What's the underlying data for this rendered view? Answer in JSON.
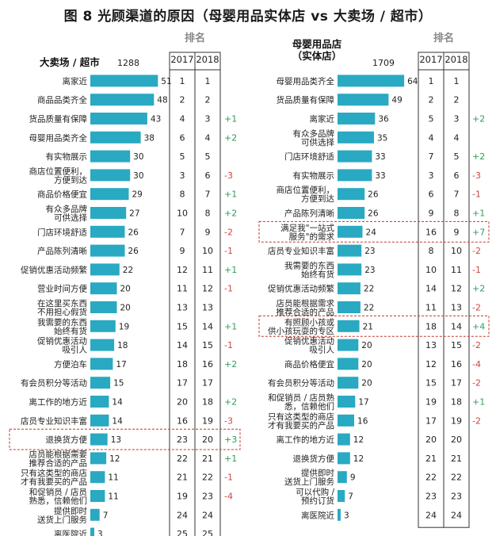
{
  "title": "图 8  光顾渠道的原因（母婴用品实体店 vs 大卖场 / 超市）",
  "rank_header": "排名",
  "years": [
    "2017",
    "2018"
  ],
  "colors": {
    "bar": "#29a9c2",
    "pos": "#2e9e5a",
    "neg": "#d0453f",
    "highlight": "#c0392b",
    "grid": "#333333"
  },
  "chart_data": [
    {
      "type": "bar",
      "orientation": "horizontal",
      "panel_title": "大卖场 / 超市",
      "sample_size": "1288",
      "xlim": [
        0,
        55
      ],
      "rows": [
        {
          "label": "离家近",
          "value": 51,
          "r2017": "1",
          "r2018": "1",
          "change": ""
        },
        {
          "label": "商品品类齐全",
          "value": 48,
          "r2017": "2",
          "r2018": "2",
          "change": ""
        },
        {
          "label": "货品质量有保障",
          "value": 43,
          "r2017": "4",
          "r2018": "3",
          "change": "+1"
        },
        {
          "label": "母婴用品类齐全",
          "value": 38,
          "r2017": "6",
          "r2018": "4",
          "change": "+2"
        },
        {
          "label": "有实物展示",
          "value": 30,
          "r2017": "5",
          "r2018": "5",
          "change": ""
        },
        {
          "label": "商店位置便利，\n方便到达",
          "value": 30,
          "r2017": "3",
          "r2018": "6",
          "change": "-3"
        },
        {
          "label": "商品价格便宜",
          "value": 29,
          "r2017": "8",
          "r2018": "7",
          "change": "+1"
        },
        {
          "label": "有众多品牌\n可供选择",
          "value": 27,
          "r2017": "10",
          "r2018": "8",
          "change": "+2"
        },
        {
          "label": "门店环境舒适",
          "value": 26,
          "r2017": "7",
          "r2018": "9",
          "change": "-2"
        },
        {
          "label": "产品陈列清晰",
          "value": 26,
          "r2017": "9",
          "r2018": "10",
          "change": "-1"
        },
        {
          "label": "促销优惠活动频繁",
          "value": 22,
          "r2017": "12",
          "r2018": "11",
          "change": "+1"
        },
        {
          "label": "营业时间方便",
          "value": 20,
          "r2017": "11",
          "r2018": "12",
          "change": "-1"
        },
        {
          "label": "在这里买东西\n不用担心假货",
          "value": 20,
          "r2017": "13",
          "r2018": "13",
          "change": ""
        },
        {
          "label": "我需要的东西\n始终有货",
          "value": 19,
          "r2017": "15",
          "r2018": "14",
          "change": "+1"
        },
        {
          "label": "促销优惠活动\n吸引人",
          "value": 18,
          "r2017": "14",
          "r2018": "15",
          "change": "-1"
        },
        {
          "label": "方便泊车",
          "value": 17,
          "r2017": "18",
          "r2018": "16",
          "change": "+2"
        },
        {
          "label": "有会员积分等活动",
          "value": 15,
          "r2017": "17",
          "r2018": "17",
          "change": ""
        },
        {
          "label": "离工作的地方近",
          "value": 14,
          "r2017": "20",
          "r2018": "18",
          "change": "+2"
        },
        {
          "label": "店员专业知识丰富",
          "value": 14,
          "r2017": "16",
          "r2018": "19",
          "change": "-3"
        },
        {
          "label": "退换货方便",
          "value": 13,
          "r2017": "23",
          "r2018": "20",
          "change": "+3",
          "highlight": true
        },
        {
          "label": "店员能根据需要\n推荐合适的产品",
          "value": 12,
          "r2017": "22",
          "r2018": "21",
          "change": "+1"
        },
        {
          "label": "只有这类型的商店\n才有我要买的产品",
          "value": 11,
          "r2017": "21",
          "r2018": "22",
          "change": "-1"
        },
        {
          "label": "和促销员 / 店员\n熟悉，信赖他们",
          "value": 11,
          "r2017": "19",
          "r2018": "23",
          "change": "-4"
        },
        {
          "label": "提供即时\n送货上门服务",
          "value": 7,
          "r2017": "24",
          "r2018": "24",
          "change": ""
        },
        {
          "label": "离医院近",
          "value": 3,
          "r2017": "25",
          "r2018": "25",
          "change": ""
        }
      ]
    },
    {
      "type": "bar",
      "orientation": "horizontal",
      "panel_title": "母婴用品店\n（实体店）",
      "sample_size": "1709",
      "xlim": [
        0,
        70
      ],
      "rows": [
        {
          "label": "母婴用品类齐全",
          "value": 64,
          "r2017": "1",
          "r2018": "1",
          "change": ""
        },
        {
          "label": "货品质量有保障",
          "value": 49,
          "r2017": "2",
          "r2018": "2",
          "change": ""
        },
        {
          "label": "离家近",
          "value": 36,
          "r2017": "5",
          "r2018": "3",
          "change": "+2"
        },
        {
          "label": "有众多品牌\n可供选择",
          "value": 35,
          "r2017": "4",
          "r2018": "4",
          "change": ""
        },
        {
          "label": "门店环境舒适",
          "value": 33,
          "r2017": "7",
          "r2018": "5",
          "change": "+2"
        },
        {
          "label": "有实物展示",
          "value": 33,
          "r2017": "3",
          "r2018": "6",
          "change": "-3"
        },
        {
          "label": "商店位置便利，\n方便到达",
          "value": 26,
          "r2017": "6",
          "r2018": "7",
          "change": "-1"
        },
        {
          "label": "产品陈列清晰",
          "value": 26,
          "r2017": "9",
          "r2018": "8",
          "change": "+1"
        },
        {
          "label": "满足我\"一站式\n服务\"的需求",
          "value": 24,
          "r2017": "16",
          "r2018": "9",
          "change": "+7",
          "highlight": true
        },
        {
          "label": "店员专业知识丰富",
          "value": 23,
          "r2017": "8",
          "r2018": "10",
          "change": "-2"
        },
        {
          "label": "我需要的东西\n始终有货",
          "value": 23,
          "r2017": "10",
          "r2018": "11",
          "change": "-1"
        },
        {
          "label": "促销优惠活动频繁",
          "value": 22,
          "r2017": "14",
          "r2018": "12",
          "change": "+2"
        },
        {
          "label": "店员能根据需求\n推荐合适的产品",
          "value": 22,
          "r2017": "11",
          "r2018": "13",
          "change": "-2"
        },
        {
          "label": "有照顾小孩或\n供小孩玩耍的专区",
          "value": 21,
          "r2017": "18",
          "r2018": "14",
          "change": "+4",
          "highlight": true
        },
        {
          "label": "促销优惠活动\n吸引人",
          "value": 20,
          "r2017": "13",
          "r2018": "15",
          "change": "-2"
        },
        {
          "label": "商品价格便宜",
          "value": 20,
          "r2017": "12",
          "r2018": "16",
          "change": "-4"
        },
        {
          "label": "有会员积分等活动",
          "value": 20,
          "r2017": "15",
          "r2018": "17",
          "change": "-2"
        },
        {
          "label": "和促销员 / 店员熟\n悉，信赖他们",
          "value": 17,
          "r2017": "19",
          "r2018": "18",
          "change": "+1"
        },
        {
          "label": "只有这类型的商店\n才有我要买的产品",
          "value": 16,
          "r2017": "17",
          "r2018": "19",
          "change": "-2"
        },
        {
          "label": "离工作的地方近",
          "value": 12,
          "r2017": "20",
          "r2018": "20",
          "change": ""
        },
        {
          "label": "退换货方便",
          "value": 12,
          "r2017": "21",
          "r2018": "21",
          "change": ""
        },
        {
          "label": "提供即时\n送货上门服务",
          "value": 9,
          "r2017": "22",
          "r2018": "22",
          "change": ""
        },
        {
          "label": "可以代购 /\n预约订货",
          "value": 7,
          "r2017": "23",
          "r2018": "23",
          "change": ""
        },
        {
          "label": "离医院近",
          "value": 3,
          "r2017": "24",
          "r2018": "24",
          "change": ""
        }
      ]
    }
  ]
}
